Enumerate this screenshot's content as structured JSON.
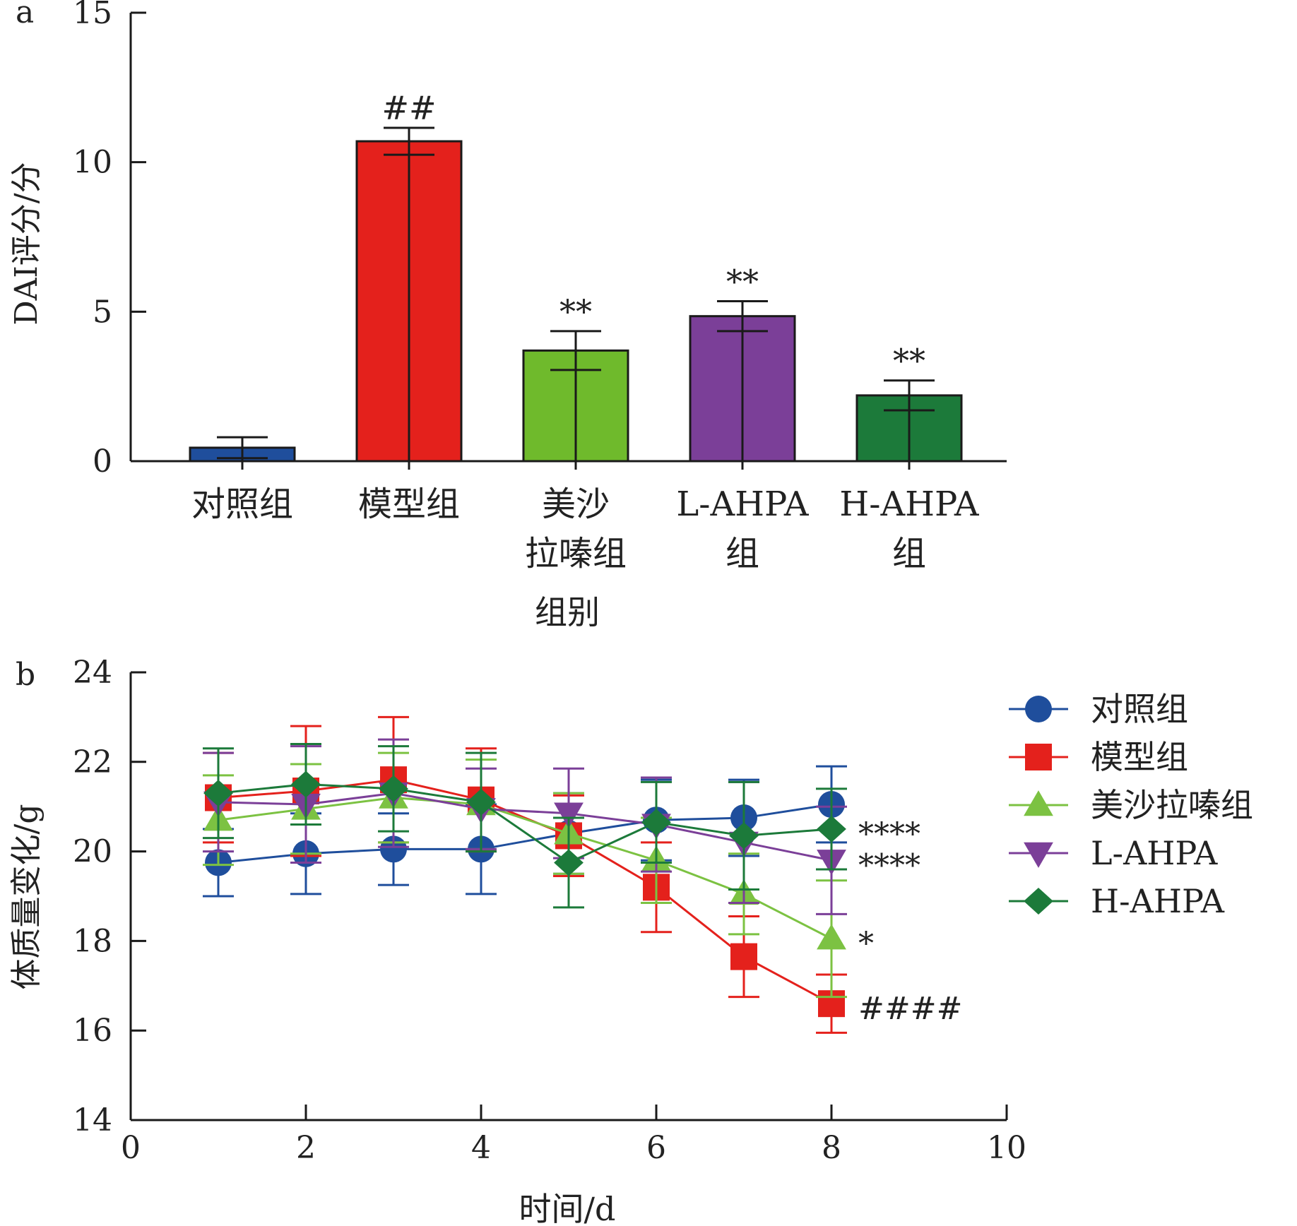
{
  "chart_data": [
    {
      "panel_label": "a",
      "type": "bar",
      "categories": [
        [
          "对照组"
        ],
        [
          "模型组"
        ],
        [
          "美沙",
          "拉嗪组"
        ],
        [
          "L-AHPA",
          "组"
        ],
        [
          "H-AHPA",
          "组"
        ]
      ],
      "values": [
        0.45,
        10.7,
        3.7,
        4.85,
        2.2
      ],
      "errors": [
        0.35,
        0.45,
        0.65,
        0.5,
        0.5
      ],
      "annotations": [
        "",
        "##",
        "**",
        "**",
        "**"
      ],
      "colors": [
        "#1f4e9c",
        "#e4211c",
        "#6fba2c",
        "#7b3f98",
        "#1c7a3a"
      ],
      "xlabel": "组别",
      "ylabel": "DAI评分/分",
      "ylim": [
        0,
        15
      ],
      "yticks": [
        "0",
        "5",
        "10",
        "15"
      ]
    },
    {
      "panel_label": "b",
      "type": "line",
      "xlabel": "时间/d",
      "ylabel": "体质量变化/g",
      "xlim": [
        0,
        10
      ],
      "ylim": [
        14,
        24
      ],
      "xticks": [
        "0",
        "2",
        "4",
        "6",
        "8",
        "10"
      ],
      "yticks": [
        "14",
        "16",
        "18",
        "20",
        "22",
        "24"
      ],
      "legend_position": "right",
      "series": [
        {
          "name": "对照组",
          "color": "#1f4e9c",
          "marker": "circle",
          "x": [
            1,
            2,
            3,
            4,
            5,
            6,
            7,
            8
          ],
          "y": [
            19.75,
            19.95,
            20.05,
            20.05,
            20.4,
            20.7,
            20.75,
            21.05
          ],
          "err": [
            0.75,
            0.9,
            0.8,
            1.0,
            0.9,
            0.9,
            0.85,
            0.85
          ],
          "end_label": ""
        },
        {
          "name": "模型组",
          "color": "#e4211c",
          "marker": "square",
          "x": [
            1,
            2,
            3,
            4,
            5,
            6,
            7,
            8
          ],
          "y": [
            21.2,
            21.35,
            21.6,
            21.15,
            20.35,
            19.2,
            17.65,
            16.6
          ],
          "err": [
            1.0,
            1.45,
            1.4,
            1.15,
            0.9,
            1.0,
            0.9,
            0.65
          ],
          "end_label": "####"
        },
        {
          "name": "美沙拉嗪组",
          "color": "#7cc242",
          "marker": "triangle-up",
          "x": [
            1,
            2,
            3,
            4,
            5,
            6,
            7,
            8
          ],
          "y": [
            20.7,
            20.95,
            21.2,
            21.05,
            20.4,
            19.8,
            19.05,
            18.05
          ],
          "err": [
            1.0,
            1.0,
            1.0,
            1.0,
            0.9,
            0.95,
            0.9,
            1.3
          ],
          "end_label": "*"
        },
        {
          "name": "L-AHPA",
          "color": "#7b3f98",
          "marker": "triangle-down",
          "x": [
            1,
            2,
            3,
            4,
            5,
            6,
            7,
            8
          ],
          "y": [
            21.1,
            21.05,
            21.3,
            20.95,
            20.85,
            20.6,
            20.2,
            19.8
          ],
          "err": [
            1.1,
            1.3,
            1.2,
            0.9,
            1.0,
            1.05,
            1.35,
            1.2
          ],
          "end_label": "****"
        },
        {
          "name": "H-AHPA",
          "color": "#1c7a3a",
          "marker": "diamond",
          "x": [
            1,
            2,
            3,
            4,
            5,
            6,
            7,
            8
          ],
          "y": [
            21.3,
            21.5,
            21.4,
            21.1,
            19.75,
            20.65,
            20.35,
            20.5
          ],
          "err": [
            1.0,
            0.9,
            0.95,
            1.1,
            1.0,
            0.9,
            1.2,
            0.9
          ],
          "end_label": "****"
        }
      ]
    }
  ]
}
